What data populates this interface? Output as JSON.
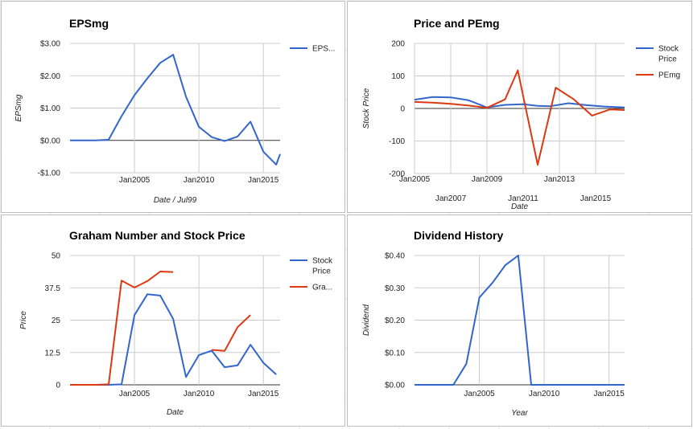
{
  "chart_data": [
    {
      "id": "eps",
      "type": "line",
      "title": "EPSmg",
      "xlabel": "Date / Jul99",
      "ylabel": "EPSmg",
      "ylim": [
        -1,
        3
      ],
      "xlim": [
        2000,
        2016.3
      ],
      "x_ticks": [
        {
          "v": 2005,
          "label": "Jan2005"
        },
        {
          "v": 2010,
          "label": "Jan2010"
        },
        {
          "v": 2015,
          "label": "Jan2015"
        }
      ],
      "y_ticks": [
        {
          "v": 3,
          "label": "$3.00"
        },
        {
          "v": 2,
          "label": "$2.00"
        },
        {
          "v": 1,
          "label": "$1.00"
        },
        {
          "v": 0,
          "label": "$0.00"
        },
        {
          "v": -1,
          "label": "-$1.00"
        }
      ],
      "grid": true,
      "legend_position": "right",
      "series": [
        {
          "name": "EPS...",
          "color": "#3366cc",
          "x": [
            2000,
            2001,
            2002,
            2003,
            2004,
            2005,
            2006,
            2007,
            2008,
            2009,
            2010,
            2011,
            2012,
            2013,
            2014,
            2015,
            2016,
            2016.3
          ],
          "y": [
            0,
            0,
            0,
            0.02,
            0.75,
            1.4,
            1.92,
            2.4,
            2.65,
            1.35,
            0.42,
            0.1,
            -0.02,
            0.12,
            0.58,
            -0.35,
            -0.75,
            -0.42
          ]
        }
      ]
    },
    {
      "id": "price_pe",
      "type": "line",
      "title": "Price and PEmg",
      "xlabel": "Date",
      "ylabel": "Stock Price",
      "ylim": [
        -200,
        200
      ],
      "xlim": [
        2005,
        2016.6
      ],
      "x_ticks": [
        {
          "v": 2005,
          "label": "Jan2005",
          "row": 0
        },
        {
          "v": 2007,
          "label": "Jan2007",
          "row": 1
        },
        {
          "v": 2009,
          "label": "Jan2009",
          "row": 0
        },
        {
          "v": 2011,
          "label": "Jan2011",
          "row": 1
        },
        {
          "v": 2013,
          "label": "Jan2013",
          "row": 0
        },
        {
          "v": 2015,
          "label": "Jan2015",
          "row": 1
        }
      ],
      "y_ticks": [
        {
          "v": 200,
          "label": "200"
        },
        {
          "v": 100,
          "label": "100"
        },
        {
          "v": 0,
          "label": "0"
        },
        {
          "v": -100,
          "label": "-100"
        },
        {
          "v": -200,
          "label": "-200"
        }
      ],
      "grid": true,
      "legend_position": "right",
      "series": [
        {
          "name": "Stock Price",
          "color": "#3366cc",
          "x": [
            2005,
            2006,
            2007,
            2008,
            2009,
            2010,
            2011,
            2011.8,
            2012.5,
            2013.5,
            2014.5,
            2015.5,
            2016.6
          ],
          "y": [
            27,
            35,
            34,
            25,
            3,
            11,
            13,
            8,
            7,
            16,
            10,
            6,
            3
          ]
        },
        {
          "name": "PEmg",
          "color": "#dc3912",
          "x": [
            2005,
            2006,
            2007,
            2008,
            2009,
            2010,
            2010.7,
            2011.8,
            2012.8,
            2013.8,
            2014.8,
            2015.8,
            2016.6
          ],
          "y": [
            20,
            18,
            14,
            9,
            2,
            28,
            117,
            -173,
            64,
            28,
            -22,
            -3,
            -5
          ]
        }
      ]
    },
    {
      "id": "graham",
      "type": "line",
      "title": "Graham Number and Stock Price",
      "xlabel": "Date",
      "ylabel": "Price",
      "ylim": [
        0,
        50
      ],
      "xlim": [
        2000,
        2016.3
      ],
      "x_ticks": [
        {
          "v": 2005,
          "label": "Jan2005"
        },
        {
          "v": 2010,
          "label": "Jan2010"
        },
        {
          "v": 2015,
          "label": "Jan2015"
        }
      ],
      "y_ticks": [
        {
          "v": 50,
          "label": "50"
        },
        {
          "v": 37.5,
          "label": "37.5"
        },
        {
          "v": 25,
          "label": "25"
        },
        {
          "v": 12.5,
          "label": "12.5"
        },
        {
          "v": 0,
          "label": "0"
        }
      ],
      "grid": true,
      "legend_position": "right",
      "series": [
        {
          "name": "Stock Price",
          "color": "#3366cc",
          "x": [
            2000,
            2001,
            2002,
            2003,
            2004,
            2005,
            2006,
            2007,
            2008,
            2009,
            2010,
            2011,
            2012,
            2013,
            2014,
            2015,
            2016
          ],
          "y": [
            0,
            0,
            0,
            0,
            0.2,
            27,
            35,
            34.5,
            25.5,
            3,
            11.5,
            13.2,
            6.8,
            7.5,
            15.5,
            8.5,
            4
          ]
        },
        {
          "name": "Gra...",
          "color": "#dc3912",
          "segments": [
            {
              "x": [
                2000,
                2001,
                2002,
                2003,
                2004,
                2005,
                2006,
                2007,
                2008
              ],
              "y": [
                0,
                0,
                0,
                0.2,
                40.3,
                37.6,
                40.1,
                43.8,
                43.6
              ]
            },
            {
              "x": [
                2011,
                2012,
                2013,
                2014
              ],
              "y": [
                13.5,
                13.1,
                22.3,
                27
              ]
            }
          ]
        }
      ]
    },
    {
      "id": "dividend",
      "type": "line",
      "title": "Dividend History",
      "xlabel": "Year",
      "ylabel": "Dividend",
      "ylim": [
        0,
        0.4
      ],
      "xlim": [
        2000,
        2016.2
      ],
      "x_ticks": [
        {
          "v": 2005,
          "label": "Jan2005"
        },
        {
          "v": 2010,
          "label": "Jan2010"
        },
        {
          "v": 2015,
          "label": "Jan2015"
        }
      ],
      "y_ticks": [
        {
          "v": 0.4,
          "label": "$0.40"
        },
        {
          "v": 0.3,
          "label": "$0.30"
        },
        {
          "v": 0.2,
          "label": "$0.20"
        },
        {
          "v": 0.1,
          "label": "$0.10"
        },
        {
          "v": 0,
          "label": "$0.00"
        }
      ],
      "grid": true,
      "legend_position": "none",
      "series": [
        {
          "name": "",
          "color": "#3366cc",
          "x": [
            2000,
            2001,
            2002,
            2003,
            2004,
            2005,
            2006,
            2007,
            2008,
            2009,
            2010,
            2011,
            2012,
            2013,
            2014,
            2015,
            2016.2
          ],
          "y": [
            0,
            0,
            0,
            0,
            0.065,
            0.27,
            0.315,
            0.37,
            0.4,
            0,
            0,
            0,
            0,
            0,
            0,
            0,
            0
          ]
        }
      ]
    }
  ]
}
